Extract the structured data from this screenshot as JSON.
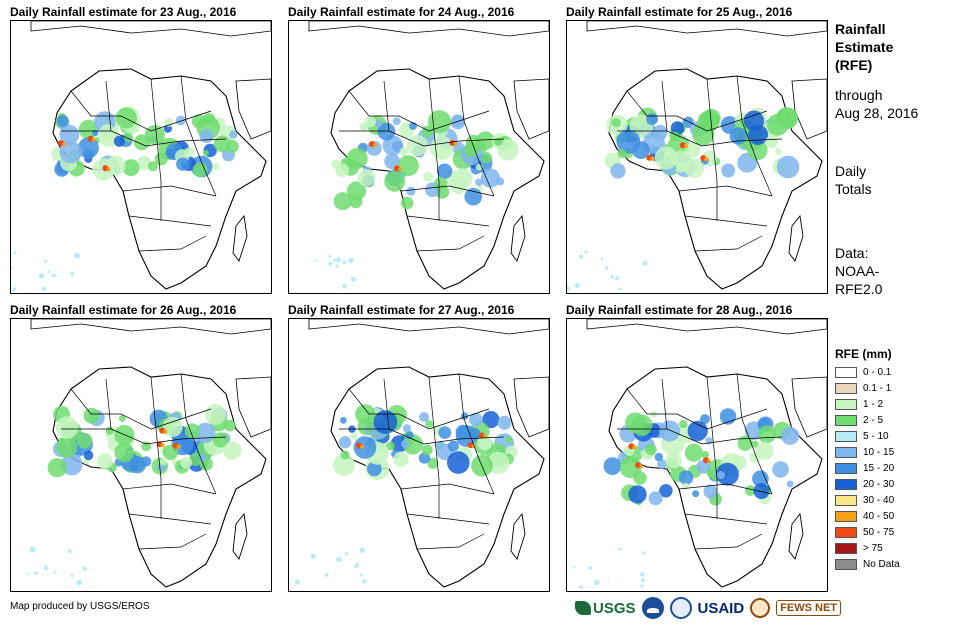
{
  "panels": [
    {
      "title": "Daily Rainfall estimate for 23 Aug., 2016"
    },
    {
      "title": "Daily Rainfall estimate for 24 Aug., 2016"
    },
    {
      "title": "Daily Rainfall estimate for 25 Aug., 2016"
    },
    {
      "title": "Daily Rainfall estimate for 26 Aug., 2016"
    },
    {
      "title": "Daily Rainfall estimate for 27 Aug., 2016"
    },
    {
      "title": "Daily Rainfall estimate for 28 Aug., 2016"
    }
  ],
  "sidebar": {
    "heading_lines": [
      "Rainfall",
      "Estimate",
      "(RFE)"
    ],
    "through_lines": [
      "through",
      "Aug 28, 2016"
    ],
    "totals_lines": [
      "Daily",
      "Totals"
    ],
    "data_lines": [
      "Data:",
      "NOAA-",
      "RFE2.0"
    ]
  },
  "legend": {
    "title": "RFE (mm)",
    "items": [
      {
        "label": "0 - 0.1",
        "color": "#ffffff"
      },
      {
        "label": "0.1 - 1",
        "color": "#e8d9bd"
      },
      {
        "label": "1 - 2",
        "color": "#c6f5c0"
      },
      {
        "label": "2 - 5",
        "color": "#6fdc6f"
      },
      {
        "label": "5 - 10",
        "color": "#b7ecf7"
      },
      {
        "label": "10 - 15",
        "color": "#7fb6ee"
      },
      {
        "label": "15 - 20",
        "color": "#3f8fe2"
      },
      {
        "label": "20 - 30",
        "color": "#1660d6"
      },
      {
        "label": "30 - 40",
        "color": "#fbe58a"
      },
      {
        "label": "40 - 50",
        "color": "#f7a11a"
      },
      {
        "label": "50 - 75",
        "color": "#f04a14"
      },
      {
        "label": "> 75",
        "color": "#a51616"
      },
      {
        "label": "No Data",
        "color": "#8c8c8c"
      }
    ]
  },
  "credit": "Map produced by USGS/EROS",
  "logos": {
    "usgs": "USGS",
    "usaid": "USAID",
    "fews": "FEWS NET"
  }
}
